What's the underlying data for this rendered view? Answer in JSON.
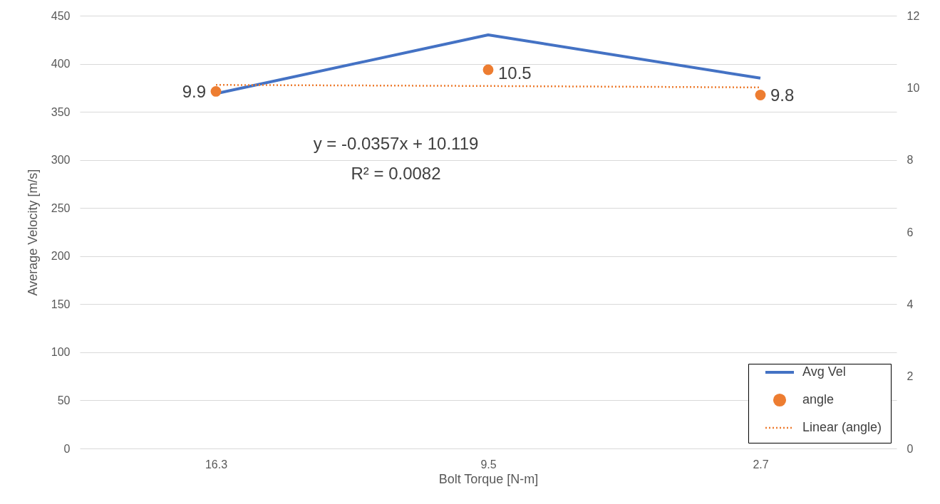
{
  "chart_data": {
    "type": "line",
    "xlabel": "Bolt Torque [N-m]",
    "ylabel": "Average Velocity [m/s]",
    "categories": [
      "16.3",
      "9.5",
      "2.7"
    ],
    "series": [
      {
        "name": "Avg Vel",
        "type": "line",
        "color": "#4472c4",
        "values": [
          369,
          430,
          385
        ]
      },
      {
        "name": "angle",
        "type": "scatter",
        "axis": "y2",
        "color": "#ed7d31",
        "values": [
          9.9,
          10.5,
          9.8
        ],
        "value_labels": [
          "9.9",
          "10.5",
          "9.8"
        ],
        "marker": "circle"
      },
      {
        "name": "Linear (angle)",
        "type": "line",
        "axis": "y2",
        "color": "#ed7d31",
        "line_style": "dotted",
        "values": [
          10.08,
          10.05,
          10.01
        ]
      }
    ],
    "ylim": [
      0,
      450
    ],
    "yticks": [
      0,
      50,
      100,
      150,
      200,
      250,
      300,
      350,
      400,
      450
    ],
    "y2lim": [
      0,
      12
    ],
    "y2ticks": [
      0,
      2,
      4,
      6,
      8,
      10,
      12
    ],
    "annotations": [
      "y = -0.0357x + 10.119",
      "R² = 0.0082"
    ],
    "grid": "y",
    "legend": "bottom right"
  }
}
